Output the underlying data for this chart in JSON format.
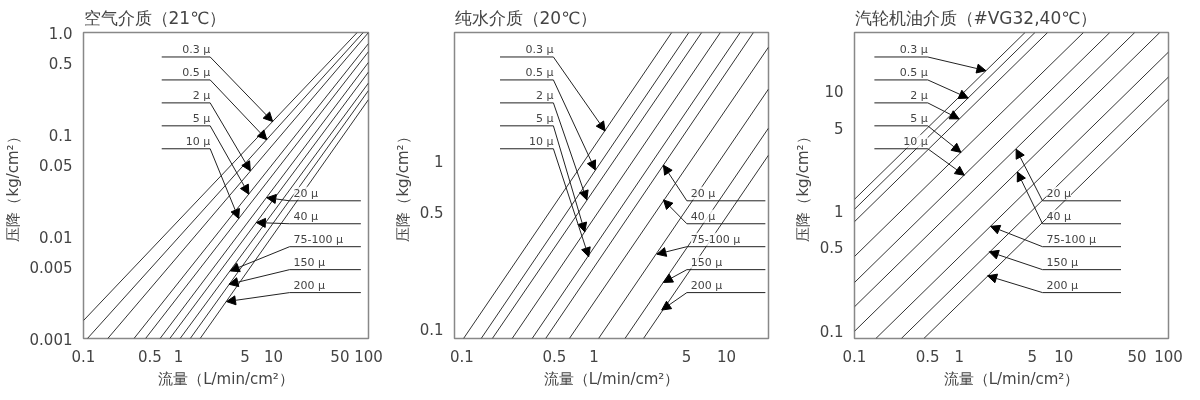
{
  "chart_data": [
    {
      "type": "line",
      "title": "空气介质（21℃）",
      "xlabel": "流量（L/min/cm²）",
      "ylabel": "压降（kg/cm²）",
      "log": "xy",
      "grid": false,
      "xlim": [
        0.1,
        100
      ],
      "ylim": [
        0.001,
        1
      ],
      "xticks": [
        0.1,
        0.5,
        1,
        5,
        10,
        50,
        100
      ],
      "yticks": [
        0.001,
        0.005,
        0.01,
        0.05,
        0.1,
        0.5,
        {
          "value": 1,
          "label": "1.0"
        }
      ],
      "series": [
        {
          "color": "#333333",
          "x": [
            0.1,
            76
          ],
          "values": [
            0.0015,
            1
          ]
        },
        {
          "color": "#333333",
          "x": [
            0.11,
            88
          ],
          "values": [
            0.001,
            1
          ]
        },
        {
          "color": "#333333",
          "x": [
            0.18,
            100
          ],
          "values": [
            0.001,
            1
          ]
        },
        {
          "color": "#333333",
          "x": [
            0.34,
            100
          ],
          "values": [
            0.001,
            0.78
          ]
        },
        {
          "color": "#333333",
          "x": [
            0.45,
            100
          ],
          "values": [
            0.001,
            0.65
          ]
        },
        {
          "color": "#333333",
          "x": [
            0.64,
            100
          ],
          "values": [
            0.001,
            0.51
          ]
        },
        {
          "color": "#333333",
          "x": [
            0.81,
            100
          ],
          "values": [
            0.001,
            0.41
          ]
        },
        {
          "color": "#333333",
          "x": [
            1.04,
            100
          ],
          "values": [
            0.001,
            0.32
          ]
        },
        {
          "color": "#333333",
          "x": [
            1.33,
            100
          ],
          "values": [
            0.001,
            0.27
          ]
        },
        {
          "color": "#333333",
          "x": [
            1.69,
            100
          ],
          "values": [
            0.001,
            0.22
          ]
        }
      ],
      "annotations": [
        {
          "text": "0.3 μ",
          "x": 9.8,
          "y": 0.134
        },
        {
          "text": "0.5 μ",
          "x": 8.5,
          "y": 0.089
        },
        {
          "text": "2 μ",
          "x": 5.7,
          "y": 0.044
        },
        {
          "text": "5 μ",
          "x": 5.5,
          "y": 0.026
        },
        {
          "text": "10 μ",
          "x": 4.3,
          "y": 0.015
        },
        {
          "text": "20 μ",
          "x": 8.5,
          "y": 0.024
        },
        {
          "text": "40 μ",
          "x": 6.6,
          "y": 0.0137
        },
        {
          "text": "75-100 μ",
          "x": 3.5,
          "y": 0.0046
        },
        {
          "text": "150 μ",
          "x": 3.4,
          "y": 0.0034
        },
        {
          "text": "200 μ",
          "x": 3.2,
          "y": 0.0023
        }
      ]
    },
    {
      "type": "line",
      "title": "纯水介质（20℃）",
      "xlabel": "流量（L/min/cm²）",
      "ylabel": "压降（kg/cm²）",
      "log": "xy",
      "grid": false,
      "xlim": [
        0.088,
        20.8
      ],
      "ylim": [
        0.088,
        5.87
      ],
      "xticks": [
        0.1,
        0.5,
        1,
        5,
        10
      ],
      "yticks": [
        0.1,
        0.5,
        1
      ],
      "series": [
        {
          "color": "#333333",
          "x": [
            0.103,
            3.86
          ],
          "values": [
            0.088,
            5.87
          ]
        },
        {
          "color": "#333333",
          "x": [
            0.14,
            5.2
          ],
          "values": [
            0.088,
            5.87
          ]
        },
        {
          "color": "#333333",
          "x": [
            0.17,
            6.5
          ],
          "values": [
            0.088,
            5.87
          ]
        },
        {
          "color": "#333333",
          "x": [
            0.24,
            9.0
          ],
          "values": [
            0.088,
            5.87
          ]
        },
        {
          "color": "#333333",
          "x": [
            0.34,
            12.7
          ],
          "values": [
            0.088,
            5.87
          ]
        },
        {
          "color": "#333333",
          "x": [
            0.43,
            16.0
          ],
          "values": [
            0.088,
            5.87
          ]
        },
        {
          "color": "#333333",
          "x": [
            0.65,
            20.8
          ],
          "values": [
            0.088,
            4.8
          ]
        },
        {
          "color": "#333333",
          "x": [
            1.08,
            20.8
          ],
          "values": [
            0.088,
            2.7
          ]
        },
        {
          "color": "#333333",
          "x": [
            1.71,
            20.8
          ],
          "values": [
            0.088,
            1.58
          ]
        },
        {
          "color": "#333333",
          "x": [
            2.36,
            20.8
          ],
          "values": [
            0.088,
            1.09
          ]
        }
      ],
      "annotations": [
        {
          "text": "0.3 μ",
          "x": 1.21,
          "y": 1.52
        },
        {
          "text": "0.5 μ",
          "x": 1.02,
          "y": 0.89
        },
        {
          "text": "2 μ",
          "x": 0.88,
          "y": 0.59
        },
        {
          "text": "5 μ",
          "x": 0.85,
          "y": 0.38
        },
        {
          "text": "10 μ",
          "x": 0.91,
          "y": 0.27
        },
        {
          "text": "20 μ",
          "x": 3.34,
          "y": 0.95
        },
        {
          "text": "40 μ",
          "x": 3.34,
          "y": 0.59
        },
        {
          "text": "75-100 μ",
          "x": 2.98,
          "y": 0.28
        },
        {
          "text": "150 μ",
          "x": 3.34,
          "y": 0.19
        },
        {
          "text": "200 μ",
          "x": 3.24,
          "y": 0.13
        }
      ]
    },
    {
      "type": "line",
      "title": "汽轮机油介质（#VG32,40℃）",
      "xlabel": "流量（L/min/cm²）",
      "ylabel": "压降（kg/cm²）",
      "log": "xy",
      "grid": false,
      "xlim": [
        0.1,
        100
      ],
      "ylim": [
        0.087,
        31
      ],
      "xticks": [
        0.1,
        0.5,
        1,
        5,
        10,
        50,
        100
      ],
      "yticks": [
        0.1,
        0.5,
        1,
        5,
        10
      ],
      "series": [
        {
          "color": "#333333",
          "x": [
            0.1,
            4.26
          ],
          "values": [
            1.26,
            31
          ]
        },
        {
          "color": "#333333",
          "x": [
            0.1,
            5.3
          ],
          "values": [
            1.04,
            31
          ]
        },
        {
          "color": "#333333",
          "x": [
            0.1,
            7.0
          ],
          "values": [
            0.82,
            31
          ]
        },
        {
          "color": "#333333",
          "x": [
            0.1,
            15.4
          ],
          "values": [
            0.42,
            31
          ]
        },
        {
          "color": "#333333",
          "x": [
            0.1,
            27.5
          ],
          "values": [
            0.255,
            31
          ]
        },
        {
          "color": "#333333",
          "x": [
            0.1,
            47.6
          ],
          "values": [
            0.16,
            31
          ]
        },
        {
          "color": "#333333",
          "x": [
            0.1,
            82.6
          ],
          "values": [
            0.1,
            31
          ]
        },
        {
          "color": "#333333",
          "x": [
            0.16,
            100
          ],
          "values": [
            0.087,
            21.3
          ]
        },
        {
          "color": "#333333",
          "x": [
            0.28,
            100
          ],
          "values": [
            0.087,
            13.2
          ]
        },
        {
          "color": "#333333",
          "x": [
            0.46,
            100
          ],
          "values": [
            0.087,
            8.6
          ]
        }
      ],
      "annotations": [
        {
          "text": "0.3 μ",
          "x": 1.8,
          "y": 14.9
        },
        {
          "text": "0.5 μ",
          "x": 1.22,
          "y": 8.8
        },
        {
          "text": "2 μ",
          "x": 1.0,
          "y": 5.9
        },
        {
          "text": "5 μ",
          "x": 1.04,
          "y": 3.1
        },
        {
          "text": "10 μ",
          "x": 1.12,
          "y": 2.0
        },
        {
          "text": "20 μ",
          "x": 3.5,
          "y": 3.3
        },
        {
          "text": "40 μ",
          "x": 3.6,
          "y": 2.13
        },
        {
          "text": "75-100 μ",
          "x": 2.0,
          "y": 0.75
        },
        {
          "text": "150 μ",
          "x": 1.94,
          "y": 0.46
        },
        {
          "text": "200 μ",
          "x": 1.87,
          "y": 0.29
        }
      ]
    }
  ]
}
